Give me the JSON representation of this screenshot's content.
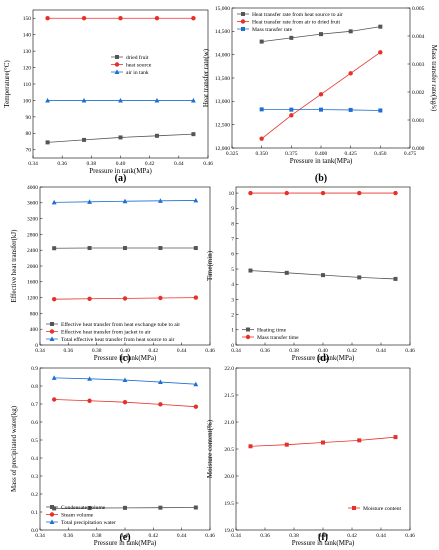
{
  "chart_data": [
    {
      "id": "a",
      "panel_label": "(a)",
      "type": "line",
      "xlabel": "Pressure in tank(MPa)",
      "ylabel": "Temperature(°C)",
      "xlim": [
        0.34,
        0.46
      ],
      "ylim": [
        65,
        155
      ],
      "xticks": [
        "0.34",
        "0.36",
        "0.38",
        "0.40",
        "0.42",
        "0.44",
        "0.46"
      ],
      "yticks": [
        "70",
        "80",
        "90",
        "100",
        "110",
        "120",
        "130",
        "140",
        "150"
      ],
      "legend_position": "middle-right",
      "x": [
        0.35,
        0.375,
        0.4,
        0.425,
        0.45
      ],
      "series": [
        {
          "name": "dried fruit",
          "color": "#555555",
          "marker": "square",
          "values": [
            74.5,
            76,
            77.5,
            78.5,
            79.5
          ]
        },
        {
          "name": "heat source",
          "color": "#e8302a",
          "marker": "circle",
          "values": [
            150,
            150,
            150,
            150,
            150
          ]
        },
        {
          "name": "air in tank",
          "color": "#1f6fd1",
          "marker": "triangle",
          "values": [
            100,
            100,
            100,
            100,
            100
          ]
        }
      ]
    },
    {
      "id": "b",
      "panel_label": "(b)",
      "type": "line",
      "xlabel": "Pressure in tank(MPa)",
      "ylabel": "Heat transfer rate(w)",
      "ylabel2": "Mass transfer rate(kg/s)",
      "xlim": [
        0.325,
        0.475
      ],
      "ylim": [
        12000,
        15000
      ],
      "ylim2": [
        0,
        0.005
      ],
      "xticks": [
        "0.325",
        "0.350",
        "0.375",
        "0.400",
        "0.425",
        "0.450",
        "0.475"
      ],
      "yticks": [
        "12,000",
        "12,500",
        "13,000",
        "13,500",
        "14,000",
        "14,500",
        "15,000"
      ],
      "y2ticks": [
        "0.000",
        "0.001",
        "0.002",
        "0.003",
        "0.004",
        "0.005"
      ],
      "legend_position": "top-left",
      "x": [
        0.35,
        0.375,
        0.4,
        0.425,
        0.45
      ],
      "series": [
        {
          "name": "Heat transfer rate from heat source to air",
          "color": "#555555",
          "marker": "square",
          "axis": "left",
          "values": [
            14280,
            14360,
            14440,
            14500,
            14600
          ]
        },
        {
          "name": "Heat transfer rate from air to dried fruit",
          "color": "#e8302a",
          "marker": "circle",
          "axis": "left",
          "values": [
            12200,
            12700,
            13150,
            13600,
            14050
          ]
        },
        {
          "name": "Mass transfer rate",
          "color": "#1f6fd1",
          "marker": "square",
          "axis": "right",
          "values": [
            0.00138,
            0.00137,
            0.00137,
            0.00136,
            0.00134
          ]
        }
      ]
    },
    {
      "id": "c",
      "panel_label": "(c)",
      "type": "line",
      "xlabel": "Pressure in tank(MPa)",
      "ylabel": "Effective heat transfer(kJ)",
      "xlim": [
        0.34,
        0.46
      ],
      "ylim": [
        0,
        4000
      ],
      "xticks": [
        "0.34",
        "0.36",
        "0.38",
        "0.40",
        "0.42",
        "0.44",
        "0.46"
      ],
      "yticks": [
        "0",
        "400",
        "800",
        "1200",
        "1600",
        "2000",
        "2400",
        "2800",
        "3200",
        "3600",
        "4000"
      ],
      "legend_position": "bottom-center",
      "x": [
        0.35,
        0.375,
        0.4,
        0.425,
        0.45
      ],
      "series": [
        {
          "name": "Effective heat transfer from heat exchange tube to air",
          "color": "#555555",
          "marker": "square",
          "values": [
            2450,
            2455,
            2455,
            2455,
            2455
          ]
        },
        {
          "name": "Effective heat transfer from jacket to air",
          "color": "#e8302a",
          "marker": "circle",
          "values": [
            1160,
            1170,
            1180,
            1190,
            1200
          ]
        },
        {
          "name": "Total effective heat transfer from heat source to air",
          "color": "#1f6fd1",
          "marker": "triangle",
          "values": [
            3610,
            3625,
            3640,
            3650,
            3660
          ]
        }
      ]
    },
    {
      "id": "d",
      "panel_label": "(d)",
      "type": "line",
      "xlabel": "Pressure in tank(MPa)",
      "ylabel": "Time(min)",
      "xlim": [
        0.34,
        0.46
      ],
      "ylim": [
        0,
        10.4
      ],
      "xticks": [
        "0.34",
        "0.36",
        "0.38",
        "0.40",
        "0.42",
        "0.44",
        "0.46"
      ],
      "yticks": [
        "0",
        "1",
        "2",
        "3",
        "4",
        "5",
        "6",
        "7",
        "8",
        "9",
        "10"
      ],
      "legend_position": "bottom-left",
      "x": [
        0.35,
        0.375,
        0.4,
        0.425,
        0.45
      ],
      "series": [
        {
          "name": "Heating time",
          "color": "#555555",
          "marker": "square",
          "values": [
            4.9,
            4.75,
            4.6,
            4.45,
            4.35
          ]
        },
        {
          "name": "Mass transfer time",
          "color": "#e8302a",
          "marker": "circle",
          "values": [
            10,
            10,
            10,
            10,
            10
          ]
        }
      ]
    },
    {
      "id": "e",
      "panel_label": "(e)",
      "type": "line",
      "xlabel": "Pressure in tank(MPa)",
      "ylabel": "Mass of precipitated water(kg)",
      "xlim": [
        0.34,
        0.46
      ],
      "ylim": [
        0.0,
        0.9
      ],
      "xticks": [
        "0.34",
        "0.36",
        "0.38",
        "0.40",
        "0.42",
        "0.44",
        "0.46"
      ],
      "yticks": [
        "0.0",
        "0.1",
        "0.2",
        "0.3",
        "0.4",
        "0.5",
        "0.6",
        "0.7",
        "0.8",
        "0.9"
      ],
      "legend_position": "bottom-left",
      "x": [
        0.35,
        0.375,
        0.4,
        0.425,
        0.45
      ],
      "series": [
        {
          "name": "Condensate volume",
          "color": "#555555",
          "marker": "square",
          "values": [
            0.12,
            0.122,
            0.123,
            0.124,
            0.125
          ]
        },
        {
          "name": "Steam volume",
          "color": "#e8302a",
          "marker": "circle",
          "values": [
            0.725,
            0.718,
            0.71,
            0.698,
            0.685
          ]
        },
        {
          "name": "Total precipitation water",
          "color": "#1f6fd1",
          "marker": "triangle",
          "values": [
            0.845,
            0.84,
            0.833,
            0.822,
            0.81
          ]
        }
      ]
    },
    {
      "id": "f",
      "panel_label": "(f)",
      "type": "line",
      "xlabel": "Pressure in tank(MPa)",
      "ylabel": "Moisture content(%)",
      "xlim": [
        0.34,
        0.46
      ],
      "ylim": [
        19.0,
        22.0
      ],
      "xticks": [
        "0.34",
        "0.36",
        "0.38",
        "0.40",
        "0.42",
        "0.44",
        "0.46"
      ],
      "yticks": [
        "19.0",
        "19.5",
        "20.0",
        "20.5",
        "21.0",
        "21.5",
        "22.0"
      ],
      "legend_position": "bottom-right",
      "x": [
        0.35,
        0.375,
        0.4,
        0.425,
        0.45
      ],
      "series": [
        {
          "name": "Moisture content",
          "color": "#e8302a",
          "marker": "square",
          "values": [
            20.55,
            20.58,
            20.62,
            20.66,
            20.72
          ]
        }
      ]
    }
  ]
}
